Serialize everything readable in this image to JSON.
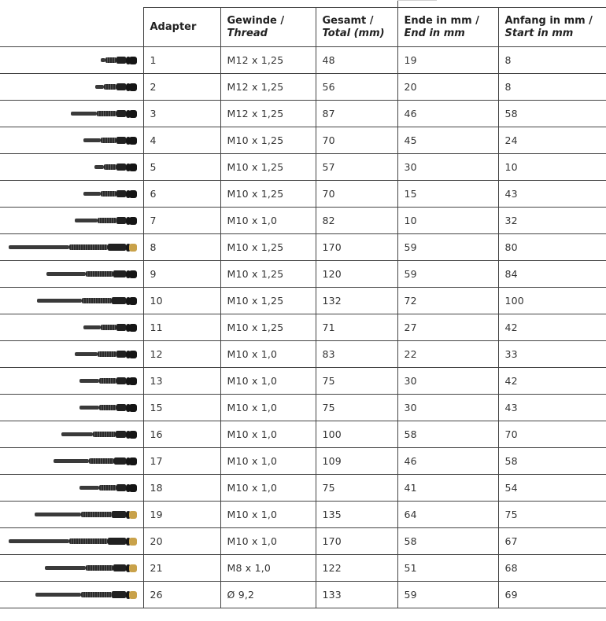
{
  "headers": {
    "adapter": "Adapter",
    "thread_de": "Gewinde /",
    "thread_en": "Thread",
    "total_de": "Gesamt /",
    "total_en": "Total (mm)",
    "end_de": "Ende in mm /",
    "end_en": "End in mm",
    "start_de": "Anfang in mm /",
    "start_en": "Start in mm"
  },
  "rows": [
    {
      "adapter": "1",
      "thread": "M12 x 1,25",
      "total": "48",
      "end": "19",
      "start": "8",
      "image": "adapter-1-icon",
      "len": 0.28,
      "brass": false
    },
    {
      "adapter": "2",
      "thread": "M12 x 1,25",
      "total": "56",
      "end": "20",
      "start": "8",
      "image": "adapter-2-icon",
      "len": 0.32,
      "brass": false
    },
    {
      "adapter": "3",
      "thread": "M12 x 1,25",
      "total": "87",
      "end": "46",
      "start": "58",
      "image": "adapter-3-icon",
      "len": 0.51,
      "brass": false
    },
    {
      "adapter": "4",
      "thread": "M10 x 1,25",
      "total": "70",
      "end": "45",
      "start": "24",
      "image": "adapter-4-icon",
      "len": 0.41,
      "brass": false
    },
    {
      "adapter": "5",
      "thread": "M10 x 1,25",
      "total": "57",
      "end": "30",
      "start": "10",
      "image": "adapter-5-icon",
      "len": 0.33,
      "brass": false
    },
    {
      "adapter": "6",
      "thread": "M10 x 1,25",
      "total": "70",
      "end": "15",
      "start": "43",
      "image": "adapter-6-icon",
      "len": 0.41,
      "brass": false
    },
    {
      "adapter": "7",
      "thread": "M10 x 1,0",
      "total": "82",
      "end": "10",
      "start": "32",
      "image": "adapter-7-icon",
      "len": 0.48,
      "brass": false
    },
    {
      "adapter": "8",
      "thread": "M10 x 1,25",
      "total": "170",
      "end": "59",
      "start": "80",
      "image": "adapter-8-icon",
      "len": 0.99,
      "brass": true
    },
    {
      "adapter": "9",
      "thread": "M10 x 1,25",
      "total": "120",
      "end": "59",
      "start": "84",
      "image": "adapter-9-icon",
      "len": 0.7,
      "brass": false
    },
    {
      "adapter": "10",
      "thread": "M10 x 1,25",
      "total": "132",
      "end": "72",
      "start": "100",
      "image": "adapter-10-icon",
      "len": 0.77,
      "brass": false
    },
    {
      "adapter": "11",
      "thread": "M10 x 1,25",
      "total": "71",
      "end": "27",
      "start": "42",
      "image": "adapter-11-icon",
      "len": 0.41,
      "brass": false
    },
    {
      "adapter": "12",
      "thread": "M10 x 1,0",
      "total": "83",
      "end": "22",
      "start": "33",
      "image": "adapter-12-icon",
      "len": 0.48,
      "brass": false
    },
    {
      "adapter": "13",
      "thread": "M10 x 1,0",
      "total": "75",
      "end": "30",
      "start": "42",
      "image": "adapter-13-icon",
      "len": 0.44,
      "brass": false
    },
    {
      "adapter": "15",
      "thread": "M10 x 1,0",
      "total": "75",
      "end": "30",
      "start": "43",
      "image": "adapter-15-icon",
      "len": 0.44,
      "brass": false
    },
    {
      "adapter": "16",
      "thread": "M10 x 1,0",
      "total": "100",
      "end": "58",
      "start": "70",
      "image": "adapter-16-icon",
      "len": 0.58,
      "brass": false
    },
    {
      "adapter": "17",
      "thread": "M10 x 1,0",
      "total": "109",
      "end": "46",
      "start": "58",
      "image": "adapter-17-icon",
      "len": 0.64,
      "brass": false
    },
    {
      "adapter": "18",
      "thread": "M10 x 1,0",
      "total": "75",
      "end": "41",
      "start": "54",
      "image": "adapter-18-icon",
      "len": 0.44,
      "brass": false
    },
    {
      "adapter": "19",
      "thread": "M10 x 1,0",
      "total": "135",
      "end": "64",
      "start": "75",
      "image": "adapter-19-icon",
      "len": 0.79,
      "brass": true
    },
    {
      "adapter": "20",
      "thread": "M10 x 1,0",
      "total": "170",
      "end": "58",
      "start": "67",
      "image": "adapter-20-icon",
      "len": 0.99,
      "brass": true
    },
    {
      "adapter": "21",
      "thread": "M8 x 1,0",
      "total": "122",
      "end": "51",
      "start": "68",
      "image": "adapter-21-icon",
      "len": 0.71,
      "brass": true
    },
    {
      "adapter": "26",
      "thread": "Ø 9,2",
      "total": "133",
      "end": "59",
      "start": "69",
      "image": "adapter-26-icon",
      "len": 0.78,
      "brass": true
    }
  ]
}
